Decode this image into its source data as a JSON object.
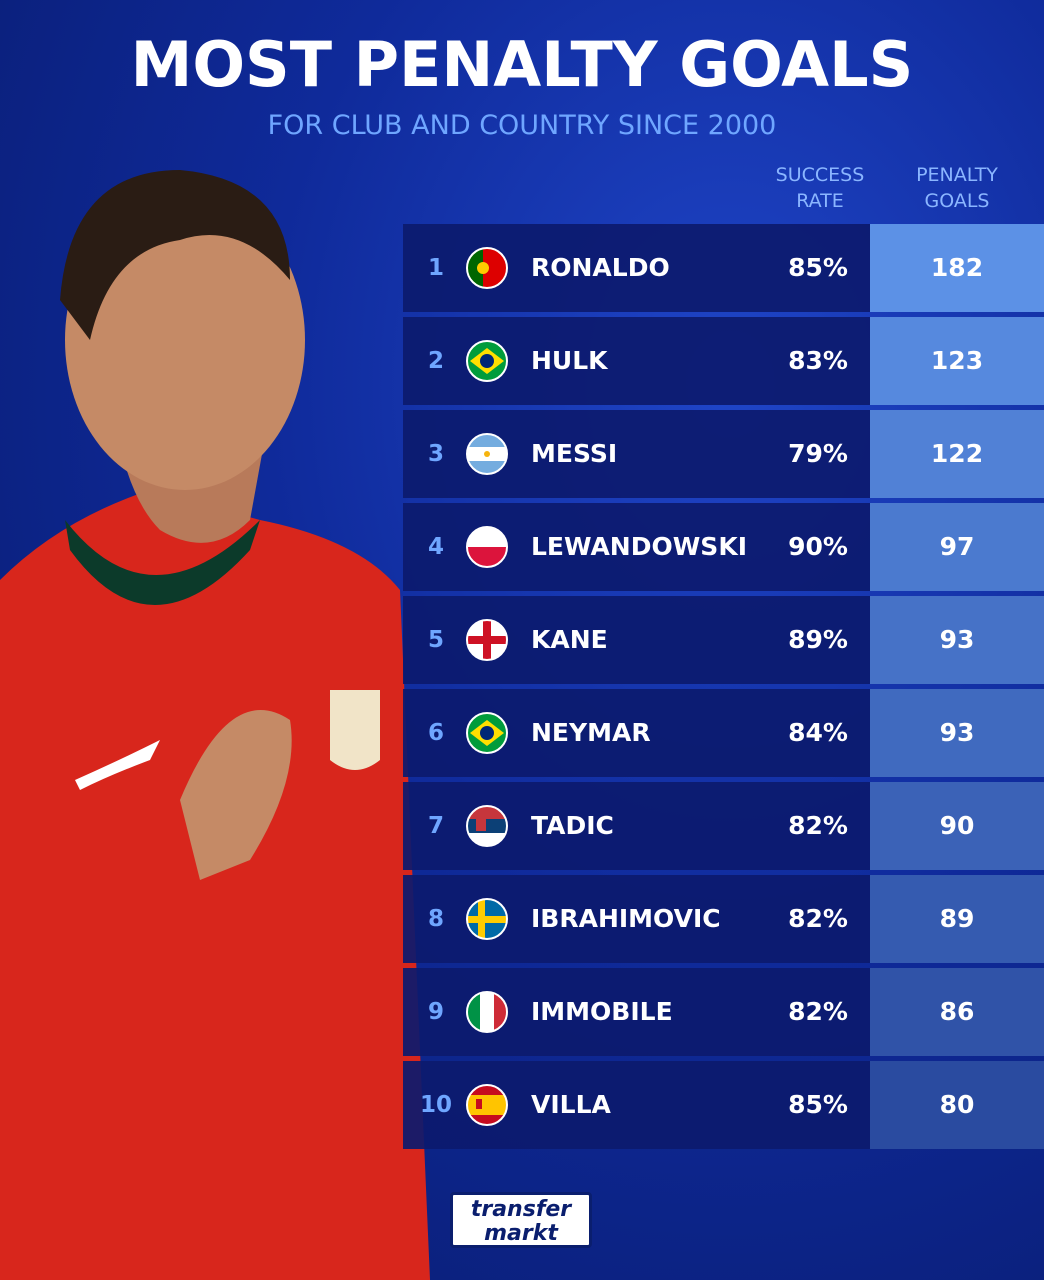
{
  "header": {
    "title": "MOST PENALTY GOALS",
    "subtitle": "FOR CLUB AND COUNTRY SINCE 2000"
  },
  "table": {
    "columns": [
      "SUCCESS RATE",
      "PENALTY GOALS"
    ],
    "rows": [
      [
        1,
        "RONALDO",
        "85%",
        182
      ],
      [
        2,
        "HULK",
        "83%",
        123
      ],
      [
        3,
        "MESSI",
        "79%",
        122
      ],
      [
        4,
        "LEWANDOWSKI",
        "90%",
        97
      ],
      [
        5,
        "KANE",
        "89%",
        93
      ],
      [
        6,
        "NEYMAR",
        "84%",
        93
      ],
      [
        7,
        "TADIC",
        "82%",
        90
      ],
      [
        8,
        "IBRAHIMOVIC",
        "82%",
        89
      ],
      [
        9,
        "IMMOBILE",
        "82%",
        86
      ],
      [
        10,
        "VILLA",
        "85%",
        80
      ]
    ]
  },
  "logo": {
    "line1": "transfer",
    "line2": "markt"
  }
}
